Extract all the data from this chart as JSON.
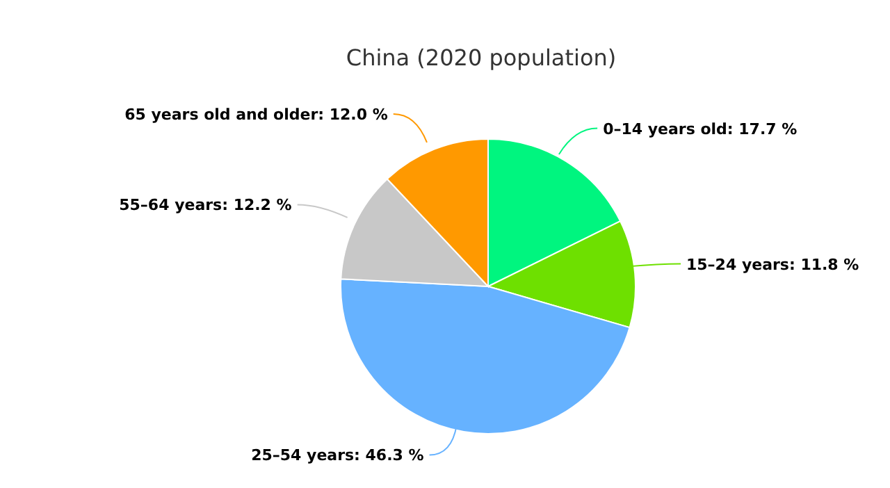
{
  "chart_data": {
    "type": "pie",
    "title": "China (2020 population)",
    "categories": [
      "0–14 years old",
      "15–24 years",
      "25–54 years",
      "55–64 years",
      "65 years old and older"
    ],
    "values": [
      17.7,
      11.8,
      46.3,
      12.2,
      12.0
    ],
    "value_labels": [
      "17.7 %",
      "11.8 %",
      "46.3 %",
      "12.2 %",
      "12.0 %"
    ],
    "colors": [
      "#00f57f",
      "#6ee000",
      "#66b2ff",
      "#c8c8c8",
      "#ff9900"
    ],
    "legend": false
  }
}
